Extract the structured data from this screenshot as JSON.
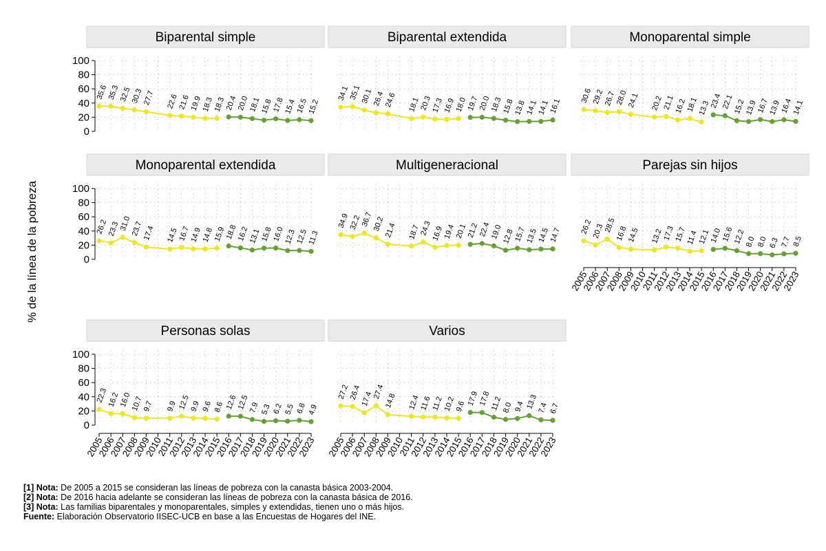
{
  "chart_data": {
    "type": "line",
    "ylabel": "% de la línea de la pobreza",
    "ylim": [
      0,
      100
    ],
    "yticks": [
      0,
      20,
      40,
      60,
      80,
      100
    ],
    "grid": true,
    "x": [
      "2005",
      "2006",
      "2007",
      "2008",
      "2009",
      "2010",
      "2011",
      "2012",
      "2013",
      "2014",
      "2015",
      "2016",
      "2017",
      "2018",
      "2019",
      "2020",
      "2021",
      "2022",
      "2023"
    ],
    "period_colors": {
      "2005-2015": "#f0e618",
      "2016-2023": "#62a22e"
    },
    "panels": [
      {
        "title": "Biparental simple",
        "values": [
          35.6,
          35.3,
          32.5,
          30.3,
          27.7,
          null,
          22.6,
          21.6,
          19.9,
          18.3,
          18.3,
          20.4,
          20.0,
          18.1,
          15.8,
          17.8,
          15.4,
          16.5,
          15.2
        ],
        "labels": [
          "35.6",
          "35.3",
          "32.5",
          "30.3",
          "27.7",
          "",
          "22.6",
          "21.6",
          "19.9",
          "18.3",
          "18.3",
          "20.4",
          "20.0",
          "18.1",
          "15.8",
          "17.8",
          "15.4",
          "16.5",
          "15.2"
        ]
      },
      {
        "title": "Biparental extendida",
        "values": [
          34.1,
          35.1,
          30.1,
          26.4,
          24.6,
          null,
          18.1,
          20.3,
          17.3,
          16.9,
          18.0,
          19.7,
          20.0,
          18.3,
          15.8,
          13.8,
          14.1,
          14.1,
          16.1
        ],
        "labels": [
          "34.1",
          "35.1",
          "30.1",
          "26.4",
          "24.6",
          "",
          "18.1",
          "20.3",
          "17.3",
          "16.9",
          "18.0",
          "19.7",
          "20.0",
          "18.3",
          "15.8",
          "13.8",
          "14.1",
          "14.1",
          "16.1"
        ]
      },
      {
        "title": "Monoparental simple",
        "values": [
          30.6,
          29.2,
          26.7,
          28.0,
          24.1,
          null,
          20.2,
          21.1,
          16.2,
          18.1,
          13.3,
          23.4,
          22.1,
          15.2,
          13.9,
          16.7,
          13.9,
          16.4,
          14.1
        ],
        "labels": [
          "30.6",
          "29.2",
          "26.7",
          "28.0",
          "24.1",
          "",
          "20.2",
          "21.1",
          "16.2",
          "18.1",
          "13.3",
          "23.4",
          "22.1",
          "15.2",
          "13.9",
          "16.7",
          "13.9",
          "16.4",
          "14.1"
        ]
      },
      {
        "title": "Monoparental extendida",
        "values": [
          26.2,
          23.3,
          31.0,
          23.7,
          17.4,
          null,
          14.5,
          16.7,
          14.9,
          14.8,
          15.9,
          18.8,
          16.2,
          13.1,
          15.8,
          16.0,
          12.3,
          12.5,
          11.3
        ],
        "labels": [
          "26.2",
          "23.3",
          "31.0",
          "23.7",
          "17.4",
          "",
          "14.5",
          "16.7",
          "14.9",
          "14.8",
          "15.9",
          "18.8",
          "16.2",
          "13.1",
          "15.8",
          "16.0",
          "12.3",
          "12.5",
          "11.3"
        ]
      },
      {
        "title": "Multigeneracional",
        "values": [
          34.9,
          32.2,
          36.7,
          30.2,
          21.4,
          null,
          18.7,
          24.3,
          16.9,
          19.4,
          20.1,
          21.2,
          22.4,
          19.0,
          12.8,
          15.7,
          13.5,
          14.5,
          14.7
        ],
        "labels": [
          "34.9",
          "32.2",
          "36.7",
          "30.2",
          "21.4",
          "",
          "18.7",
          "24.3",
          "16.9",
          "19.4",
          "20.1",
          "21.2",
          "22.4",
          "19.0",
          "12.8",
          "15.7",
          "13.5",
          "14.5",
          "14.7"
        ]
      },
      {
        "title": "Parejas sin hijos",
        "values": [
          26.2,
          20.3,
          28.5,
          16.8,
          14.5,
          null,
          13.2,
          17.3,
          15.7,
          11.4,
          12.1,
          14.0,
          15.6,
          12.2,
          8.0,
          8.0,
          6.3,
          7.7,
          8.5
        ],
        "labels": [
          "26.2",
          "20.3",
          "28.5",
          "16.8",
          "14.5",
          "",
          "13.2",
          "17.3",
          "15.7",
          "11.4",
          "12.1",
          "14.0",
          "15.6",
          "12.2",
          "8.0",
          "8.0",
          "6.3",
          "7.7",
          "8.5"
        ]
      },
      {
        "title": "Personas solas",
        "values": [
          22.3,
          16.2,
          16.0,
          10.7,
          9.7,
          null,
          9.9,
          12.5,
          9.9,
          9.6,
          8.6,
          12.6,
          12.5,
          7.9,
          5.3,
          6.2,
          5.5,
          6.8,
          4.9
        ],
        "labels": [
          "22.3",
          "16.2",
          "16.0",
          "10.7",
          "9.7",
          "",
          "9.9",
          "12.5",
          "9.9",
          "9.6",
          "8.6",
          "12.6",
          "12.5",
          "7.9",
          "5.3",
          "6.2",
          "5.5",
          "6.8",
          "4.9"
        ]
      },
      {
        "title": "Varios",
        "values": [
          27.2,
          26.4,
          17.4,
          27.4,
          14.8,
          null,
          12.4,
          11.6,
          11.2,
          10.2,
          9.6,
          17.9,
          17.8,
          11.2,
          8.0,
          9.4,
          13.3,
          7.4,
          6.7
        ],
        "labels": [
          "27.2",
          "26.4",
          "17.4",
          "27.4",
          "14.8",
          "",
          "12.4",
          "11.6",
          "11.2",
          "10.2",
          "9.6",
          "17.9",
          "17.8",
          "11.2",
          "8.0",
          "9.4",
          "13.3",
          "7.4",
          "6.7"
        ]
      }
    ]
  },
  "notes": [
    {
      "tag": "[1] Nota:",
      "text": " De 2005 a 2015 se consideran las líneas de pobreza con la canasta básica 2003-2004."
    },
    {
      "tag": "[2] Nota:",
      "text": " De 2016 hacia adelante se consideran las líneas de pobreza con la canasta básica de 2016."
    },
    {
      "tag": "[3] Nota:",
      "text": " Las familias biparentales y monoparentales, simples y extendidas, tienen uno o más hijos."
    },
    {
      "tag": "Fuente:",
      "text": " Elaboración Observatorio IISEC-UCB en base a las Encuestas de Hogares del INE."
    }
  ]
}
